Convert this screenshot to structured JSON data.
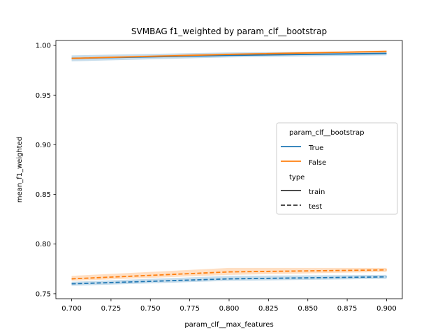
{
  "chart_data": {
    "type": "line",
    "title": "SVMBAG f1_weighted by param_clf__bootstrap",
    "xlabel": "param_clf__max_features",
    "ylabel": "mean_f1_weighted",
    "xlim": [
      0.69,
      0.91
    ],
    "ylim": [
      0.745,
      1.005
    ],
    "xticks": [
      "0.700",
      "0.725",
      "0.750",
      "0.775",
      "0.800",
      "0.825",
      "0.850",
      "0.875",
      "0.900"
    ],
    "yticks": [
      "0.75",
      "0.80",
      "0.85",
      "0.90",
      "0.95",
      "1.00"
    ],
    "grid": false,
    "legend": {
      "placement": "center-right",
      "hue_title": "param_clf__bootstrap",
      "style_title": "type",
      "hue_entries": [
        {
          "label": "True",
          "color": "#1f77b4"
        },
        {
          "label": "False",
          "color": "#ff7f0e"
        }
      ],
      "style_entries": [
        {
          "label": "train",
          "dash": "solid"
        },
        {
          "label": "test",
          "dash": "dashed"
        }
      ]
    },
    "x": [
      0.7,
      0.8,
      0.9
    ],
    "series": [
      {
        "bootstrap": "True",
        "type": "train",
        "color": "#1f77b4",
        "dash": "solid",
        "values": [
          0.987,
          0.99,
          0.992
        ],
        "ci_low": [
          0.984,
          0.988,
          0.99
        ],
        "ci_high": [
          0.99,
          0.993,
          0.994
        ]
      },
      {
        "bootstrap": "False",
        "type": "train",
        "color": "#ff7f0e",
        "dash": "solid",
        "values": [
          0.987,
          0.991,
          0.994
        ],
        "ci_low": [
          0.986,
          0.99,
          0.993
        ],
        "ci_high": [
          0.988,
          0.992,
          0.995
        ]
      },
      {
        "bootstrap": "True",
        "type": "test",
        "color": "#1f77b4",
        "dash": "dashed",
        "values": [
          0.76,
          0.765,
          0.767
        ],
        "ci_low": [
          0.758,
          0.763,
          0.765
        ],
        "ci_high": [
          0.762,
          0.768,
          0.769
        ]
      },
      {
        "bootstrap": "False",
        "type": "test",
        "color": "#ff7f0e",
        "dash": "dashed",
        "values": [
          0.765,
          0.772,
          0.774
        ],
        "ci_low": [
          0.763,
          0.769,
          0.772
        ],
        "ci_high": [
          0.768,
          0.776,
          0.776
        ]
      }
    ]
  }
}
